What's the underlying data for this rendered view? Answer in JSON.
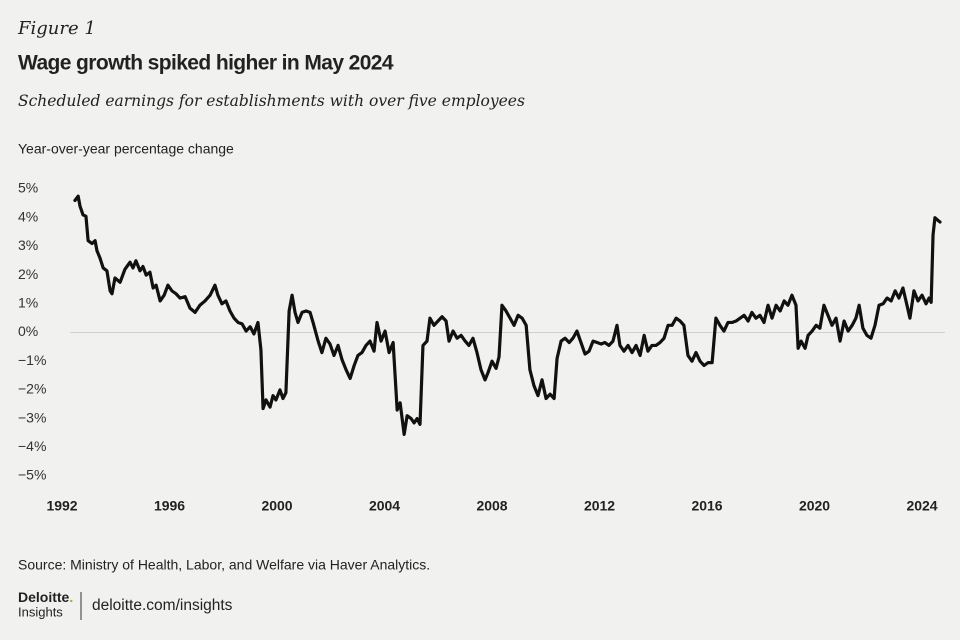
{
  "chart_data": {
    "type": "line",
    "figure_label": "Figure 1",
    "title": "Wage growth spiked higher in May 2024",
    "subtitle": "Scheduled earnings for establishments with over five employees",
    "y_label": "Year-over-year percentage change",
    "source": "Source: Ministry of Health, Labor, and Welfare via Haver Analytics.",
    "color": "#111111",
    "zero_line": true,
    "xlim": [
      1991.5,
      2025
    ],
    "xticks": [
      1992,
      1996,
      2000,
      2004,
      2008,
      2012,
      2016,
      2020,
      2024
    ],
    "ylim": [
      -5,
      5
    ],
    "yticks": [
      {
        "value": 5,
        "label": "5%"
      },
      {
        "value": 4,
        "label": "4%"
      },
      {
        "value": 3,
        "label": "3%"
      },
      {
        "value": 2,
        "label": "2%"
      },
      {
        "value": 1,
        "label": "1%"
      },
      {
        "value": 0,
        "label": "0%"
      },
      {
        "value": -1,
        "label": "−1%"
      },
      {
        "value": -2,
        "label": "−2%"
      },
      {
        "value": -3,
        "label": "−3%"
      },
      {
        "value": -4,
        "label": "−4%"
      },
      {
        "value": -5,
        "label": "−5%"
      }
    ],
    "x": [
      1992.48,
      1992.6,
      1992.67,
      1992.78,
      1992.89,
      1992.97,
      1993.12,
      1993.23,
      1993.3,
      1993.41,
      1993.53,
      1993.67,
      1993.79,
      1993.86,
      1993.97,
      1994.16,
      1994.34,
      1994.53,
      1994.64,
      1994.75,
      1994.9,
      1995.01,
      1995.13,
      1995.27,
      1995.39,
      1995.5,
      1995.65,
      1995.8,
      1995.94,
      1996.09,
      1996.24,
      1996.39,
      1996.58,
      1996.76,
      1996.95,
      1997.13,
      1997.32,
      1997.51,
      1997.69,
      1997.8,
      1997.95,
      1998.1,
      1998.25,
      1998.4,
      1998.55,
      1998.7,
      1998.85,
      1999.0,
      1999.14,
      1999.29,
      1999.4,
      1999.48,
      1999.59,
      1999.74,
      1999.85,
      1999.96,
      2000.11,
      2000.22,
      2000.33,
      2000.45,
      2000.56,
      2000.67,
      2000.78,
      2000.93,
      2001.08,
      2001.23,
      2001.34,
      2001.53,
      2001.67,
      2001.82,
      2001.97,
      2002.12,
      2002.27,
      2002.42,
      2002.57,
      2002.72,
      2002.87,
      2003.01,
      2003.16,
      2003.31,
      2003.46,
      2003.61,
      2003.72,
      2003.87,
      2004.02,
      2004.17,
      2004.32,
      2004.47,
      2004.58,
      2004.73,
      2004.84,
      2004.99,
      2005.1,
      2005.21,
      2005.32,
      2005.43,
      2005.58,
      2005.69,
      2005.84,
      2005.99,
      2006.14,
      2006.29,
      2006.4,
      2006.55,
      2006.7,
      2006.85,
      2007.0,
      2007.14,
      2007.29,
      2007.44,
      2007.59,
      2007.74,
      2007.85,
      2008.0,
      2008.15,
      2008.26,
      2008.37,
      2008.52,
      2008.67,
      2008.82,
      2008.97,
      2009.12,
      2009.27,
      2009.41,
      2009.56,
      2009.71,
      2009.86,
      2010.01,
      2010.16,
      2010.31,
      2010.42,
      2010.57,
      2010.72,
      2010.87,
      2011.01,
      2011.16,
      2011.31,
      2011.46,
      2011.61,
      2011.76,
      2011.91,
      2012.06,
      2012.2,
      2012.35,
      2012.5,
      2012.65,
      2012.76,
      2012.91,
      2013.06,
      2013.21,
      2013.36,
      2013.51,
      2013.66,
      2013.8,
      2013.95,
      2014.1,
      2014.25,
      2014.4,
      2014.55,
      2014.7,
      2014.85,
      2015.0,
      2015.14,
      2015.29,
      2015.44,
      2015.59,
      2015.74,
      2015.89,
      2016.04,
      2016.19,
      2016.33,
      2016.48,
      2016.63,
      2016.78,
      2016.93,
      2017.08,
      2017.23,
      2017.38,
      2017.53,
      2017.67,
      2017.82,
      2017.97,
      2018.12,
      2018.27,
      2018.42,
      2018.57,
      2018.72,
      2018.87,
      2019.01,
      2019.16,
      2019.31,
      2019.39,
      2019.5,
      2019.65,
      2019.76,
      2019.91,
      2020.06,
      2020.2,
      2020.35,
      2020.5,
      2020.65,
      2020.8,
      2020.95,
      2021.1,
      2021.25,
      2021.4,
      2021.54,
      2021.66,
      2021.8,
      2021.95,
      2022.1,
      2022.25,
      2022.4,
      2022.55,
      2022.7,
      2022.85,
      2023.0,
      2023.14,
      2023.29,
      2023.44,
      2023.55,
      2023.7,
      2023.85,
      2024.0,
      2024.15,
      2024.26,
      2024.34,
      2024.41,
      2024.48,
      2024.6,
      2024.67
    ],
    "values": [
      4.6,
      4.75,
      4.4,
      4.1,
      4.05,
      3.2,
      3.1,
      3.2,
      2.85,
      2.6,
      2.25,
      2.15,
      1.45,
      1.35,
      1.9,
      1.75,
      2.2,
      2.45,
      2.25,
      2.5,
      2.15,
      2.3,
      2.0,
      2.1,
      1.55,
      1.65,
      1.1,
      1.3,
      1.65,
      1.45,
      1.35,
      1.2,
      1.25,
      0.85,
      0.7,
      0.95,
      1.1,
      1.3,
      1.65,
      1.3,
      1.0,
      1.1,
      0.75,
      0.5,
      0.35,
      0.3,
      0.05,
      0.2,
      -0.05,
      0.35,
      -0.6,
      -2.65,
      -2.35,
      -2.6,
      -2.2,
      -2.35,
      -2.0,
      -2.3,
      -2.1,
      0.75,
      1.3,
      0.7,
      0.35,
      0.7,
      0.75,
      0.7,
      0.35,
      -0.3,
      -0.7,
      -0.2,
      -0.4,
      -0.8,
      -0.45,
      -0.95,
      -1.3,
      -1.6,
      -1.15,
      -0.8,
      -0.7,
      -0.45,
      -0.3,
      -0.65,
      0.35,
      -0.3,
      0.05,
      -0.7,
      -0.35,
      -2.7,
      -2.45,
      -3.55,
      -2.9,
      -3.0,
      -3.15,
      -3.0,
      -3.2,
      -0.45,
      -0.3,
      0.5,
      0.25,
      0.4,
      0.55,
      0.4,
      -0.3,
      0.05,
      -0.2,
      -0.1,
      -0.3,
      -0.45,
      -0.2,
      -0.7,
      -1.3,
      -1.65,
      -1.4,
      -1.0,
      -1.25,
      -0.85,
      0.95,
      0.75,
      0.5,
      0.25,
      0.6,
      0.5,
      0.25,
      -1.3,
      -1.85,
      -2.2,
      -1.65,
      -2.3,
      -2.15,
      -2.3,
      -0.9,
      -0.3,
      -0.2,
      -0.35,
      -0.2,
      0.05,
      -0.35,
      -0.75,
      -0.65,
      -0.3,
      -0.35,
      -0.4,
      -0.35,
      -0.45,
      -0.3,
      0.25,
      -0.45,
      -0.65,
      -0.45,
      -0.7,
      -0.45,
      -0.8,
      -0.1,
      -0.65,
      -0.45,
      -0.45,
      -0.35,
      -0.2,
      0.25,
      0.25,
      0.5,
      0.4,
      0.25,
      -0.8,
      -1.0,
      -0.7,
      -1.0,
      -1.15,
      -1.05,
      -1.05,
      0.5,
      0.25,
      0.05,
      0.35,
      0.35,
      0.4,
      0.5,
      0.6,
      0.4,
      0.7,
      0.5,
      0.6,
      0.35,
      0.95,
      0.5,
      0.95,
      0.75,
      1.1,
      0.95,
      1.3,
      0.95,
      -0.55,
      -0.3,
      -0.55,
      -0.1,
      0.05,
      0.25,
      0.15,
      0.95,
      0.6,
      0.25,
      0.5,
      -0.3,
      0.4,
      0.05,
      0.25,
      0.5,
      0.95,
      0.15,
      -0.1,
      -0.2,
      0.25,
      0.95,
      1.0,
      1.2,
      1.1,
      1.45,
      1.2,
      1.55,
      0.95,
      0.5,
      1.45,
      1.1,
      1.3,
      1.0,
      1.2,
      1.05,
      3.4,
      4.0,
      3.9,
      3.85
    ]
  },
  "footer": {
    "brand": "Deloitte",
    "brand_dot": ".",
    "brand_sub": "Insights",
    "url": "deloitte.com/insights"
  }
}
